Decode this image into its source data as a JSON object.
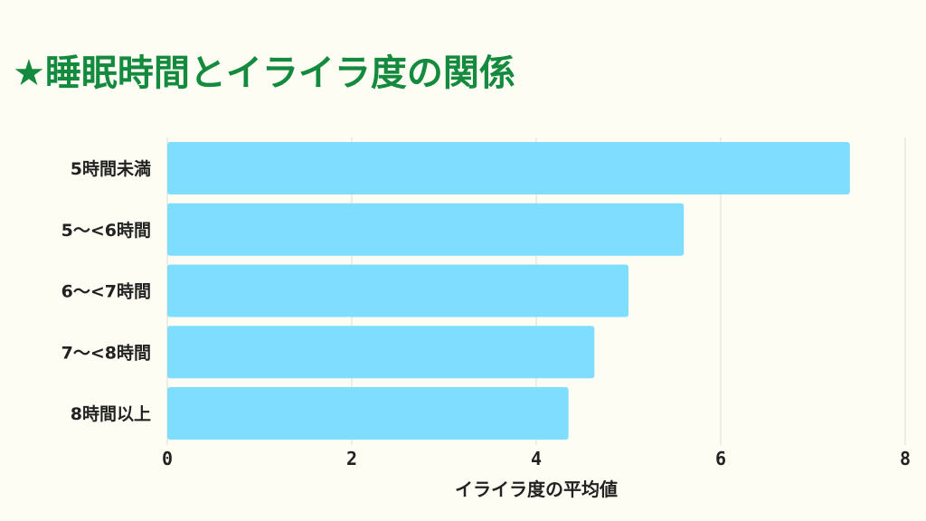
{
  "title": "★睡眠時間とイライラ度の関係",
  "colors": {
    "title": "#138A3E",
    "bar": "#7FDEFF",
    "grid": "#DDDDDD",
    "background": "#FDFDF3",
    "text": "#222222"
  },
  "chart_data": {
    "type": "bar",
    "orientation": "horizontal",
    "title": "★睡眠時間とイライラ度の関係",
    "categories": [
      "5時間未満",
      "5〜<6時間",
      "6〜<7時間",
      "7〜<8時間",
      "8時間以上"
    ],
    "values": [
      7.4,
      5.6,
      5.0,
      4.63,
      4.35
    ],
    "xlabel": "イライラ度の平均値",
    "ylabel": "",
    "xlim": [
      0,
      8
    ],
    "xticks": [
      0,
      2,
      4,
      6,
      8
    ],
    "grid": true,
    "legend": "none"
  }
}
